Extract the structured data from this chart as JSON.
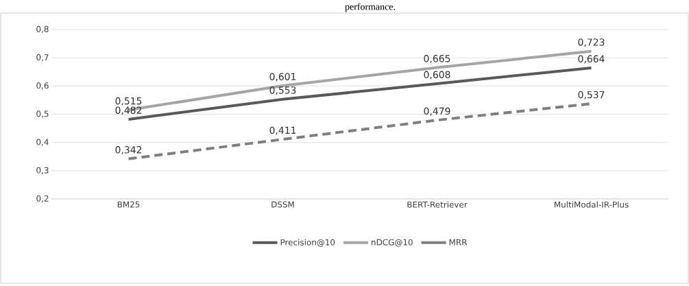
{
  "chart_data": {
    "type": "line",
    "title": "performance.",
    "categories": [
      "BM25",
      "DSSM",
      "BERT-Retriever",
      "MultiModal-IR-Plus"
    ],
    "series": [
      {
        "name": "Precision@10",
        "color": "#595959",
        "values": [
          0.482,
          0.553,
          0.608,
          0.664
        ],
        "value_labels": [
          "0,482",
          "0,553",
          "0,608",
          "0,664"
        ],
        "line_style": "solid"
      },
      {
        "name": "nDCG@10",
        "color": "#a5a5a5",
        "values": [
          0.515,
          0.601,
          0.665,
          0.723
        ],
        "value_labels": [
          "0,515",
          "0,601",
          "0,665",
          "0,723"
        ],
        "line_style": "solid"
      },
      {
        "name": "MRR",
        "color": "#7f7f7f",
        "values": [
          0.342,
          0.411,
          0.479,
          0.537
        ],
        "value_labels": [
          "0,342",
          "0,411",
          "0,479",
          "0,537"
        ],
        "line_style": "dashed"
      }
    ],
    "ylim": [
      0.2,
      0.8
    ],
    "yticks": [
      {
        "value": 0.2,
        "label": "0,2"
      },
      {
        "value": 0.3,
        "label": "0,3"
      },
      {
        "value": 0.4,
        "label": "0,4"
      },
      {
        "value": 0.5,
        "label": "0,5"
      },
      {
        "value": 0.6,
        "label": "0,6"
      },
      {
        "value": 0.7,
        "label": "0,7"
      },
      {
        "value": 0.8,
        "label": "0,8"
      }
    ],
    "grid": "y",
    "legend": "bottom",
    "marker": "none"
  }
}
